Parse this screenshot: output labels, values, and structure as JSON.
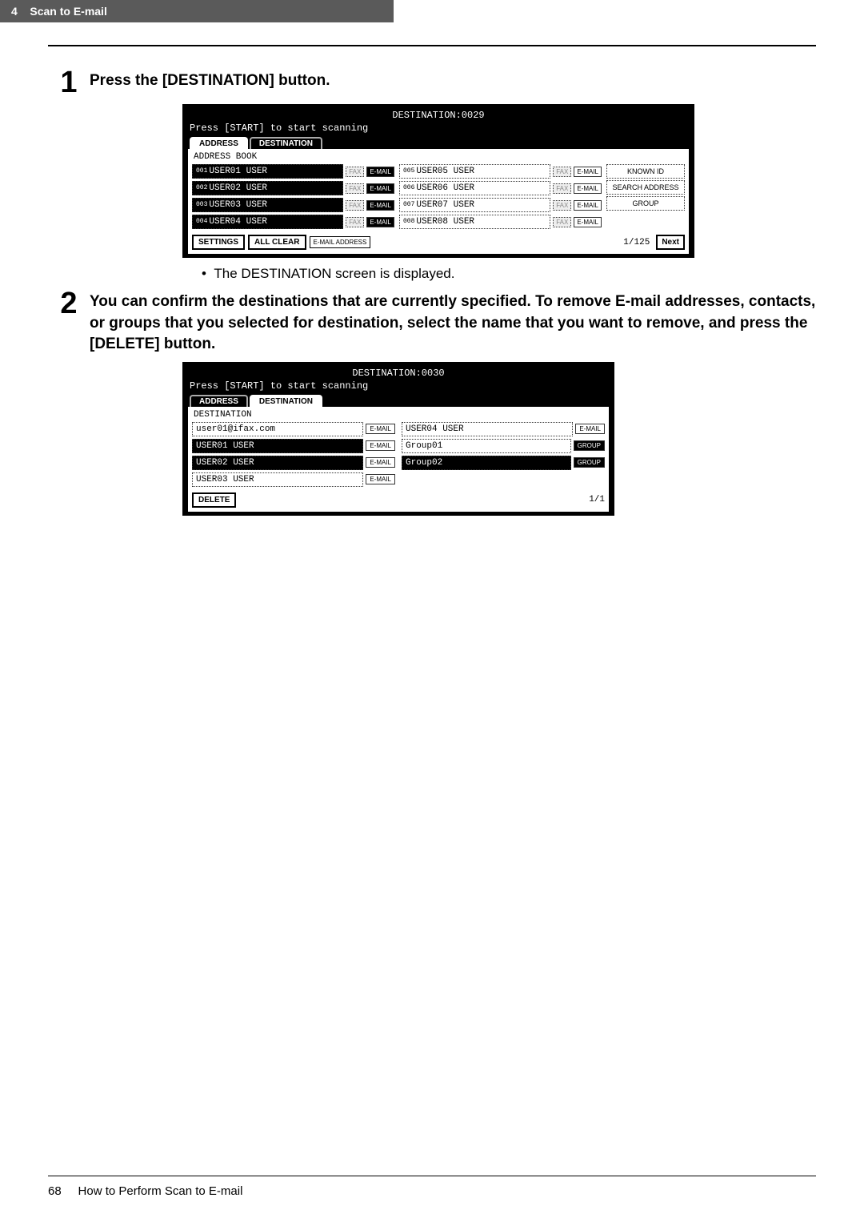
{
  "header": {
    "chapter_num": "4",
    "chapter_title": "Scan to E-mail"
  },
  "step1": {
    "num": "1",
    "text": "Press the [DESTINATION] button.",
    "panel": {
      "title": "DESTINATION:0029",
      "subtitle": "Press [START] to start scanning",
      "tab_address": "ADDRESS",
      "tab_destination": "DESTINATION",
      "section": "ADDRESS BOOK",
      "rows_left": [
        {
          "idx": "001",
          "name": "USER01 USER"
        },
        {
          "idx": "002",
          "name": "USER02 USER"
        },
        {
          "idx": "003",
          "name": "USER03 USER"
        },
        {
          "idx": "004",
          "name": "USER04 USER"
        }
      ],
      "rows_right": [
        {
          "idx": "005",
          "name": "USER05 USER"
        },
        {
          "idx": "006",
          "name": "USER06 USER"
        },
        {
          "idx": "007",
          "name": "USER07 USER"
        },
        {
          "idx": "008",
          "name": "USER08 USER"
        }
      ],
      "chip_fax": "FAX",
      "chip_email": "E-MAIL",
      "side": {
        "known_id": "KNOWN ID",
        "search": "SEARCH ADDRESS",
        "group": "GROUP"
      },
      "bottom": {
        "settings": "SETTINGS",
        "all_clear": "ALL CLEAR",
        "email_addr": "E-MAIL ADDRESS",
        "page": "1/125",
        "next": "Next"
      }
    },
    "note": "The DESTINATION screen is displayed."
  },
  "step2": {
    "num": "2",
    "text": "You can confirm the destinations that are currently specified. To remove E-mail addresses, contacts, or groups that you selected for destination, select the name that you want to remove, and press the [DELETE] button.",
    "panel": {
      "title": "DESTINATION:0030",
      "subtitle": "Press [START] to start scanning",
      "tab_address": "ADDRESS",
      "tab_destination": "DESTINATION",
      "section": "DESTINATION",
      "left": [
        {
          "name": "user01@ifax.com",
          "tag": "E-MAIL",
          "tagcls": "email",
          "dark": false
        },
        {
          "name": "USER01 USER",
          "tag": "E-MAIL",
          "tagcls": "email",
          "dark": true
        },
        {
          "name": "USER02 USER",
          "tag": "E-MAIL",
          "tagcls": "email",
          "dark": true
        },
        {
          "name": "USER03 USER",
          "tag": "E-MAIL",
          "tagcls": "email",
          "dark": false
        }
      ],
      "right": [
        {
          "name": "USER04 USER",
          "tag": "E-MAIL",
          "tagcls": "email",
          "dark": false
        },
        {
          "name": "Group01",
          "tag": "GROUP",
          "tagcls": "group",
          "dark": false
        },
        {
          "name": "Group02",
          "tag": "GROUP",
          "tagcls": "group",
          "dark": true
        },
        {
          "name": "",
          "tag": "",
          "tagcls": "",
          "dark": false
        }
      ],
      "delete": "DELETE",
      "page": "1/1"
    }
  },
  "footer": {
    "page_num": "68",
    "page_title": "How to Perform Scan to E-mail"
  }
}
